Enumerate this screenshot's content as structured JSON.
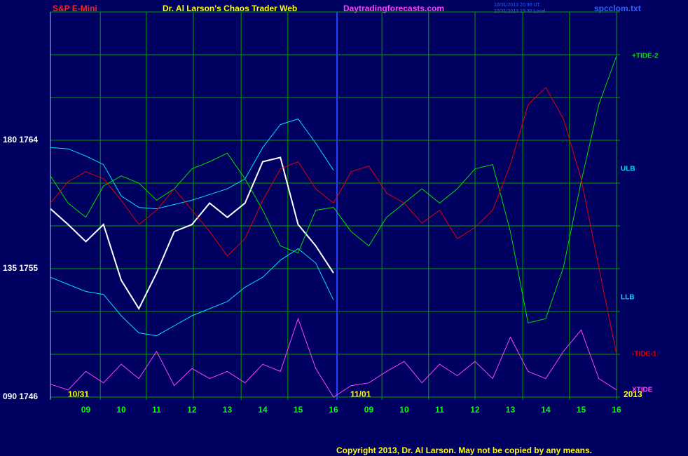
{
  "header": {
    "symbol": "S&P E-Mini",
    "site_title": "Dr. Al Larson's Chaos Trader Web",
    "url": "Daytradingforecasts.com",
    "time_ut": "10/31/2013 20:30 UT",
    "time_local": "10/31/2013 15:30 Local",
    "file": "spcclom.txt"
  },
  "footer": {
    "copyright": "Copyright 2013, Dr. Al Larson. May not be copied by any means.",
    "year": "2013"
  },
  "chart_data": {
    "type": "line",
    "dates": [
      "10/31",
      "11/01"
    ],
    "x": [
      0,
      0.5,
      1,
      1.5,
      2,
      2.5,
      3,
      3.5,
      4,
      4.5,
      5,
      5.5,
      6,
      6.5,
      7,
      7.5,
      8,
      8.5,
      9,
      9.5,
      10,
      10.5,
      11,
      11.5,
      12,
      12.5,
      13,
      13.5,
      14,
      14.5,
      15,
      15.5,
      16
    ],
    "xlim": [
      0,
      16.1
    ],
    "xticks": [
      {
        "value": 1,
        "label": "09"
      },
      {
        "value": 2,
        "label": "10"
      },
      {
        "value": 3,
        "label": "11"
      },
      {
        "value": 4,
        "label": "12"
      },
      {
        "value": 5,
        "label": "13"
      },
      {
        "value": 6,
        "label": "14"
      },
      {
        "value": 7,
        "label": "15"
      },
      {
        "value": 8,
        "label": "16"
      },
      {
        "value": 9,
        "label": "09"
      },
      {
        "value": 10,
        "label": "10"
      },
      {
        "value": 11,
        "label": "11"
      },
      {
        "value": 12,
        "label": "12"
      },
      {
        "value": 13,
        "label": "13"
      },
      {
        "value": 14,
        "label": "14"
      },
      {
        "value": 15,
        "label": "15"
      },
      {
        "value": 16,
        "label": "16"
      }
    ],
    "xgrid": [
      1.41,
      2.71,
      4.04,
      5.39,
      6.71,
      9.37,
      10.69,
      12.0,
      13.35,
      14.67,
      16.0
    ],
    "ylim": [
      1746,
      1773
    ],
    "yticks": [
      {
        "value": 1746,
        "label": "090 1746"
      },
      {
        "value": 1755,
        "label": "135 1755"
      },
      {
        "value": 1764,
        "label": "180 1764"
      }
    ],
    "ygrid": [
      1746,
      1749,
      1752,
      1755,
      1758,
      1761,
      1764,
      1767,
      1770,
      1773
    ],
    "grid": true,
    "series": [
      {
        "color": "#ffffff",
        "values": [
          1759.2,
          1758.1,
          1756.9,
          1758.1,
          1754.2,
          1752.2,
          1754.7,
          1757.6,
          1758.1,
          1759.6,
          1758.6,
          1759.6,
          1762.5,
          1762.8,
          1758.1,
          1756.6,
          1754.7,
          null,
          null,
          null,
          null,
          null,
          null,
          null,
          null,
          null,
          null,
          null,
          null,
          null,
          null,
          null,
          null
        ]
      },
      {
        "name": "ULB",
        "color": "#00e0ff",
        "values": [
          1763.5,
          1763.4,
          1762.9,
          1762.3,
          1760.1,
          1759.3,
          1759.2,
          1759.5,
          1759.8,
          1760.2,
          1760.6,
          1761.3,
          1763.5,
          1765.1,
          1765.5,
          1763.8,
          1761.9,
          null,
          null,
          null,
          null,
          null,
          null,
          null,
          null,
          null,
          null,
          null,
          null,
          null,
          null,
          null,
          null
        ]
      },
      {
        "name": "LLB",
        "color": "#00e0ff",
        "values": [
          1754.4,
          1753.9,
          1753.4,
          1753.2,
          1751.7,
          1750.5,
          1750.3,
          1751.0,
          1751.7,
          1752.2,
          1752.7,
          1753.7,
          1754.4,
          1755.6,
          1756.4,
          1755.4,
          1752.8,
          null,
          null,
          null,
          null,
          null,
          null,
          null,
          null,
          null,
          null,
          null,
          null,
          null,
          null,
          null,
          null
        ]
      },
      {
        "name": "+TIDE-2",
        "color": "#00e000",
        "values": [
          1761.5,
          1759.6,
          1758.6,
          1760.8,
          1761.5,
          1761.0,
          1759.8,
          1760.6,
          1762.0,
          1762.5,
          1763.1,
          1761.3,
          1759.1,
          1756.6,
          1756.1,
          1759.1,
          1759.3,
          1757.6,
          1756.6,
          1758.6,
          1759.6,
          1760.6,
          1759.6,
          1760.6,
          1762.0,
          1762.3,
          1757.6,
          1751.2,
          1751.5,
          1755.1,
          1761.1,
          1766.5,
          1769.9
        ]
      },
      {
        "name": "-TIDE-1",
        "color": "#e00000",
        "values": [
          1759.6,
          1761.1,
          1761.8,
          1761.3,
          1759.8,
          1758.1,
          1759.1,
          1760.6,
          1759.1,
          1757.6,
          1755.9,
          1757.1,
          1759.8,
          1762.0,
          1762.5,
          1760.6,
          1759.6,
          1761.8,
          1762.2,
          1760.3,
          1759.6,
          1758.2,
          1759.1,
          1757.1,
          1757.9,
          1759.1,
          1762.3,
          1766.5,
          1767.7,
          1765.5,
          1761.3,
          1755.1,
          1749.0
        ]
      },
      {
        "name": "XTIDE",
        "color": "#ff40ff",
        "values": [
          1746.9,
          1746.5,
          1747.8,
          1747.0,
          1748.3,
          1747.3,
          1749.2,
          1746.8,
          1748.0,
          1747.3,
          1747.8,
          1747.0,
          1748.3,
          1747.8,
          1751.5,
          1748.0,
          1746.0,
          1746.8,
          1747.0,
          1747.8,
          1748.5,
          1747.0,
          1748.3,
          1747.5,
          1748.5,
          1747.3,
          1750.2,
          1747.8,
          1747.3,
          1749.2,
          1750.7,
          1747.3,
          1746.5
        ]
      }
    ]
  }
}
